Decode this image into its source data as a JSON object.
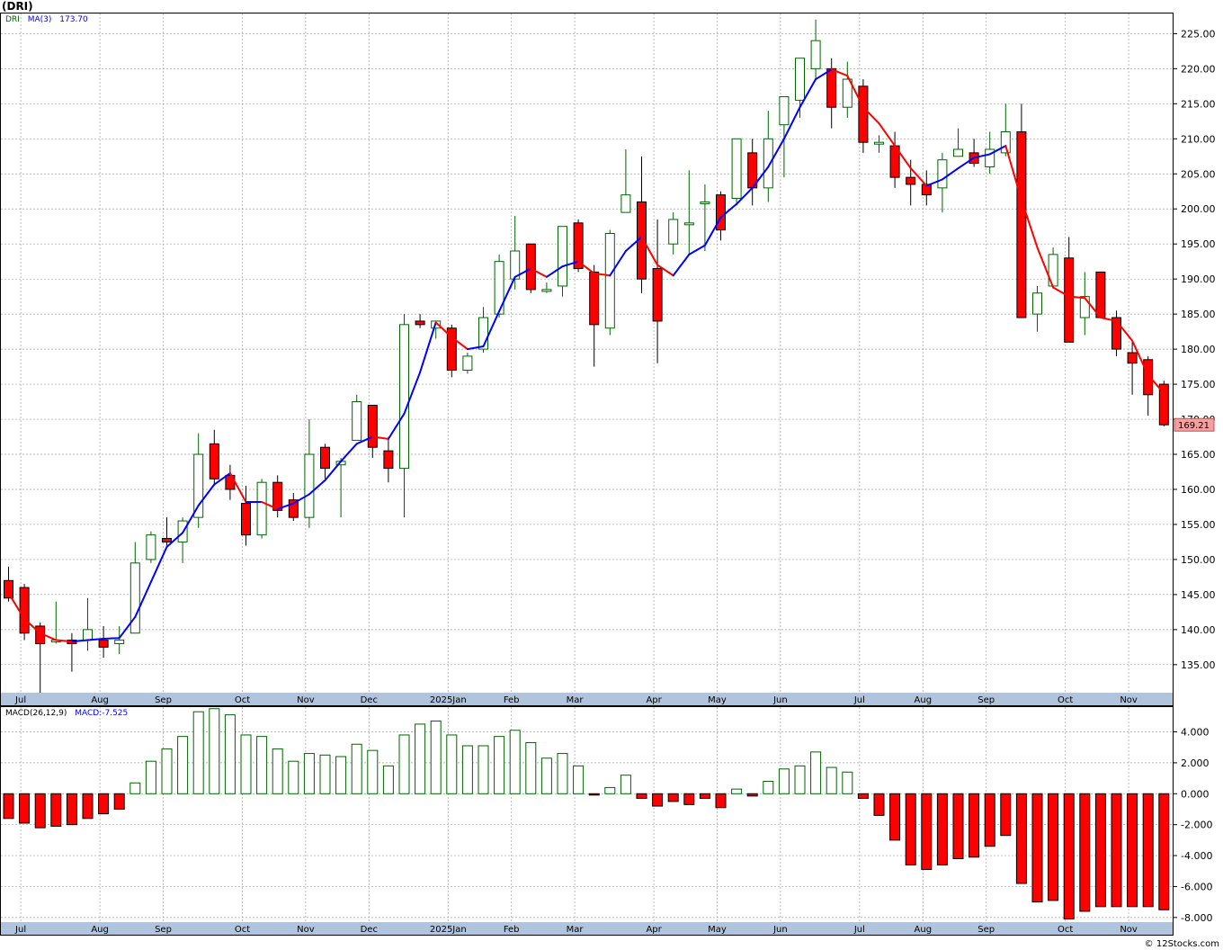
{
  "title": "(DRI)",
  "watermark": "© 12Stocks.com",
  "colors": {
    "up": "#006400",
    "down": "#ff0000",
    "ma_up": "#0000ff",
    "ma_down": "#ff0000",
    "frame": "#000000",
    "grid": "#a0a0a0",
    "axisband": "#b0c4de",
    "lastprice_bg": "#f4a0a0"
  },
  "price_panel": {
    "legend": [
      {
        "text": "DRI",
        "color": "#006400"
      },
      {
        "text": "MA(3)",
        "color": "#0000ff"
      },
      {
        "text": "173.70",
        "color": "#0000ff"
      }
    ],
    "ylim": [
      131,
      228
    ],
    "yticks": [
      "135.00",
      "140.00",
      "145.00",
      "150.00",
      "155.00",
      "160.00",
      "165.00",
      "170.00",
      "175.00",
      "180.00",
      "185.00",
      "190.00",
      "195.00",
      "200.00",
      "205.00",
      "210.00",
      "215.00",
      "220.00",
      "225.00"
    ],
    "last_price": "169.21"
  },
  "macd_panel": {
    "legend": [
      {
        "text": "MACD(26,12,9)",
        "color": "#000000"
      },
      {
        "text": "MACD:-7.525",
        "color": "#0000ff"
      }
    ],
    "ylim": [
      -8.3,
      5.6
    ],
    "yticks": [
      "4.000",
      "2.000",
      "0.000",
      "-2.000",
      "-4.000",
      "-6.000",
      "-8.000"
    ]
  },
  "x_axis": {
    "months": [
      {
        "label": "Jul",
        "bar": 1
      },
      {
        "label": "Aug",
        "bar": 6
      },
      {
        "label": "Sep",
        "bar": 10
      },
      {
        "label": "Oct",
        "bar": 15
      },
      {
        "label": "Nov",
        "bar": 19
      },
      {
        "label": "Dec",
        "bar": 23
      },
      {
        "label": "2025Jan",
        "bar": 28
      },
      {
        "label": "Feb",
        "bar": 32
      },
      {
        "label": "Mar",
        "bar": 36
      },
      {
        "label": "Apr",
        "bar": 41
      },
      {
        "label": "May",
        "bar": 45
      },
      {
        "label": "Jun",
        "bar": 49
      },
      {
        "label": "Jul",
        "bar": 54
      },
      {
        "label": "Aug",
        "bar": 58
      },
      {
        "label": "Sep",
        "bar": 62
      },
      {
        "label": "Oct",
        "bar": 67
      },
      {
        "label": "Nov",
        "bar": 71
      }
    ]
  },
  "chart_data": {
    "type": "candlestick",
    "symbol": "DRI",
    "interval": "weekly",
    "ohlc": [
      [
        147,
        149,
        144,
        144.5
      ],
      [
        146,
        146.5,
        138.5,
        139.5
      ],
      [
        140.5,
        141,
        131,
        138
      ],
      [
        138.5,
        144,
        138,
        138.5
      ],
      [
        138.5,
        139.5,
        134,
        138
      ],
      [
        138.5,
        144.5,
        137,
        140
      ],
      [
        138.5,
        140.5,
        136,
        137.5
      ],
      [
        138,
        140.5,
        136.5,
        138.5
      ],
      [
        139.5,
        152.5,
        139.5,
        149.5
      ],
      [
        150,
        154,
        149.5,
        153.5
      ],
      [
        153,
        156,
        152,
        152.5
      ],
      [
        152.5,
        156,
        149.5,
        155.5
      ],
      [
        156,
        168,
        154.5,
        165
      ],
      [
        166.5,
        168.5,
        160.5,
        161.5
      ],
      [
        162,
        163.5,
        158.5,
        160
      ],
      [
        158,
        160.5,
        152,
        153.5
      ],
      [
        153.5,
        161.5,
        153,
        161
      ],
      [
        161,
        162,
        156,
        157
      ],
      [
        158.5,
        159.5,
        155.5,
        156
      ],
      [
        156,
        170,
        154.5,
        165
      ],
      [
        166,
        166.5,
        161.5,
        163
      ],
      [
        163.5,
        164.5,
        156,
        164
      ],
      [
        167,
        173.5,
        167,
        172.5
      ],
      [
        172,
        172,
        164.5,
        166
      ],
      [
        165.5,
        167.5,
        161,
        163
      ],
      [
        163,
        185,
        156,
        183.5
      ],
      [
        184,
        185,
        183,
        183.5
      ],
      [
        183,
        184,
        181.5,
        184
      ],
      [
        183,
        183.5,
        176,
        177
      ],
      [
        177,
        179.5,
        176.5,
        179
      ],
      [
        180,
        186,
        179.5,
        184.5
      ],
      [
        185,
        193.5,
        184.5,
        192.5
      ],
      [
        190,
        199,
        188.5,
        194
      ],
      [
        195,
        195,
        188,
        188.5
      ],
      [
        188.5,
        189.5,
        188,
        188.5
      ],
      [
        189,
        197.5,
        187.5,
        197.5
      ],
      [
        198,
        198.5,
        191,
        191.5
      ],
      [
        191,
        192,
        177.5,
        183.5
      ],
      [
        183,
        197,
        182,
        196.5
      ],
      [
        199.5,
        208.5,
        199.5,
        202
      ],
      [
        201,
        207.5,
        188,
        190
      ],
      [
        191.5,
        198.5,
        178,
        184
      ],
      [
        195,
        199.5,
        193.5,
        198.5
      ],
      [
        198,
        205.5,
        193.5,
        198
      ],
      [
        201,
        203.5,
        194,
        201
      ],
      [
        202,
        202.5,
        195.5,
        197
      ],
      [
        201.5,
        210,
        200.5,
        210
      ],
      [
        208,
        210,
        200.5,
        203
      ],
      [
        203,
        214,
        201,
        210
      ],
      [
        212,
        216,
        204.5,
        216
      ],
      [
        215.5,
        221.5,
        213,
        221.5
      ],
      [
        220,
        227,
        218.5,
        224
      ],
      [
        220,
        221.5,
        211.5,
        214.5
      ],
      [
        214.5,
        221,
        213,
        218.5
      ],
      [
        217.5,
        218.5,
        208,
        209.5
      ],
      [
        209.5,
        210.5,
        208,
        209.5
      ],
      [
        209,
        211,
        203,
        204.5
      ],
      [
        204.5,
        207,
        200.5,
        203.5
      ],
      [
        203.5,
        205.5,
        200.5,
        202
      ],
      [
        203,
        208,
        199.5,
        207
      ],
      [
        207.5,
        211.5,
        207.5,
        208.5
      ],
      [
        208,
        210,
        206,
        206.5
      ],
      [
        206,
        211,
        205,
        208.5
      ],
      [
        208,
        215,
        207.5,
        211
      ],
      [
        211,
        215,
        184.5,
        184.5
      ],
      [
        185,
        189,
        182.5,
        188
      ],
      [
        189,
        194.5,
        189,
        193.5
      ],
      [
        193,
        196,
        181,
        181
      ],
      [
        184.5,
        191,
        182,
        187.5
      ],
      [
        191,
        191,
        184.5,
        184.5
      ],
      [
        184.5,
        185.5,
        179,
        180
      ],
      [
        179.5,
        181,
        173.5,
        178
      ],
      [
        178.5,
        179,
        170.5,
        173.5
      ],
      [
        175,
        175.5,
        169,
        169.21
      ]
    ],
    "ma3": [
      145.2,
      141.5,
      139.5,
      138.5,
      138.3,
      138.5,
      138.7,
      138.8,
      141.8,
      146.8,
      151.8,
      153.8,
      157.7,
      160.7,
      162.3,
      158.2,
      158.2,
      157.2,
      158.0,
      159.3,
      161.3,
      164.0,
      166.5,
      167.5,
      167.2,
      170.8,
      176.7,
      183.8,
      181.7,
      180.0,
      180.4,
      185.4,
      190.3,
      191.5,
      190.3,
      191.8,
      192.5,
      190.8,
      190.5,
      194.0,
      196.0,
      192.0,
      190.5,
      193.5,
      194.8,
      198.8,
      200.7,
      203.0,
      206.0,
      210.0,
      214.5,
      218.5,
      219.9,
      219.0,
      214.5,
      212.2,
      209.0,
      205.8,
      203.3,
      204.2,
      205.8,
      207.3,
      207.8,
      209.0,
      201.3,
      194.5,
      188.8,
      187.5,
      187.3,
      184.5,
      184.0,
      181.2,
      176.3,
      173.7
    ],
    "macd": [
      -1.6,
      -1.9,
      -2.2,
      -2.1,
      -2.0,
      -1.6,
      -1.3,
      -1.0,
      0.7,
      2.1,
      2.9,
      3.7,
      5.3,
      5.5,
      5.1,
      3.8,
      3.7,
      2.9,
      2.1,
      2.6,
      2.5,
      2.4,
      3.2,
      2.8,
      1.8,
      3.8,
      4.5,
      4.7,
      3.8,
      3.1,
      3.1,
      3.7,
      4.1,
      3.3,
      2.3,
      2.6,
      1.8,
      -0.05,
      0.4,
      1.2,
      -0.3,
      -0.8,
      -0.5,
      -0.7,
      -0.3,
      -0.9,
      0.3,
      -0.15,
      0.8,
      1.6,
      1.8,
      2.7,
      1.7,
      1.4,
      -0.3,
      -1.4,
      -3.0,
      -4.6,
      -4.9,
      -4.6,
      -4.2,
      -4.1,
      -3.4,
      -2.7,
      -5.8,
      -7.0,
      -6.9,
      -8.1,
      -7.6,
      -7.3,
      -7.3,
      -7.3,
      -7.3,
      -7.5
    ],
    "x_tick_labels": [
      "Jul",
      "Aug",
      "Sep",
      "Oct",
      "Nov",
      "Dec",
      "2025Jan",
      "Feb",
      "Mar",
      "Apr",
      "May",
      "Jun",
      "Jul",
      "Aug",
      "Sep",
      "Oct",
      "Nov"
    ]
  }
}
